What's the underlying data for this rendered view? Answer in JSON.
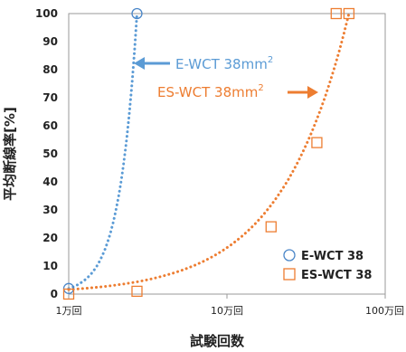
{
  "chart_data": {
    "type": "scatter",
    "xlabel": "試験回数",
    "ylabel": "平均断線率[%]",
    "x_scale": "log",
    "xlim": [
      10000,
      1000000
    ],
    "ylim": [
      0,
      100
    ],
    "x_ticks": [
      {
        "value": 10000,
        "label": "1万回"
      },
      {
        "value": 100000,
        "label": "10万回"
      },
      {
        "value": 1000000,
        "label": "100万回"
      }
    ],
    "y_ticks": [
      0,
      10,
      20,
      30,
      40,
      50,
      60,
      70,
      80,
      90,
      100
    ],
    "grid": false,
    "legend_position": "bottom-right",
    "series": [
      {
        "name": "E-WCT 38",
        "marker": "circle",
        "color": "#4a86c8",
        "points": [
          {
            "x": 10000,
            "y": 2
          },
          {
            "x": 27000,
            "y": 100
          }
        ],
        "trend_color": "#5b9bd5"
      },
      {
        "name": "ES-WCT 38",
        "marker": "square",
        "color": "#ed7d31",
        "points": [
          {
            "x": 10000,
            "y": 0
          },
          {
            "x": 27000,
            "y": 1
          },
          {
            "x": 190000,
            "y": 24
          },
          {
            "x": 370000,
            "y": 54
          },
          {
            "x": 490000,
            "y": 100
          },
          {
            "x": 590000,
            "y": 100
          }
        ],
        "trend_color": "#ed7d31"
      }
    ],
    "annotations": [
      {
        "text": "E-WCT 38mm",
        "sup": "2",
        "color": "#5b9bd5",
        "arrow": "left"
      },
      {
        "text": "ES-WCT 38mm",
        "sup": "2",
        "color": "#ed7d31",
        "arrow": "right"
      }
    ]
  }
}
